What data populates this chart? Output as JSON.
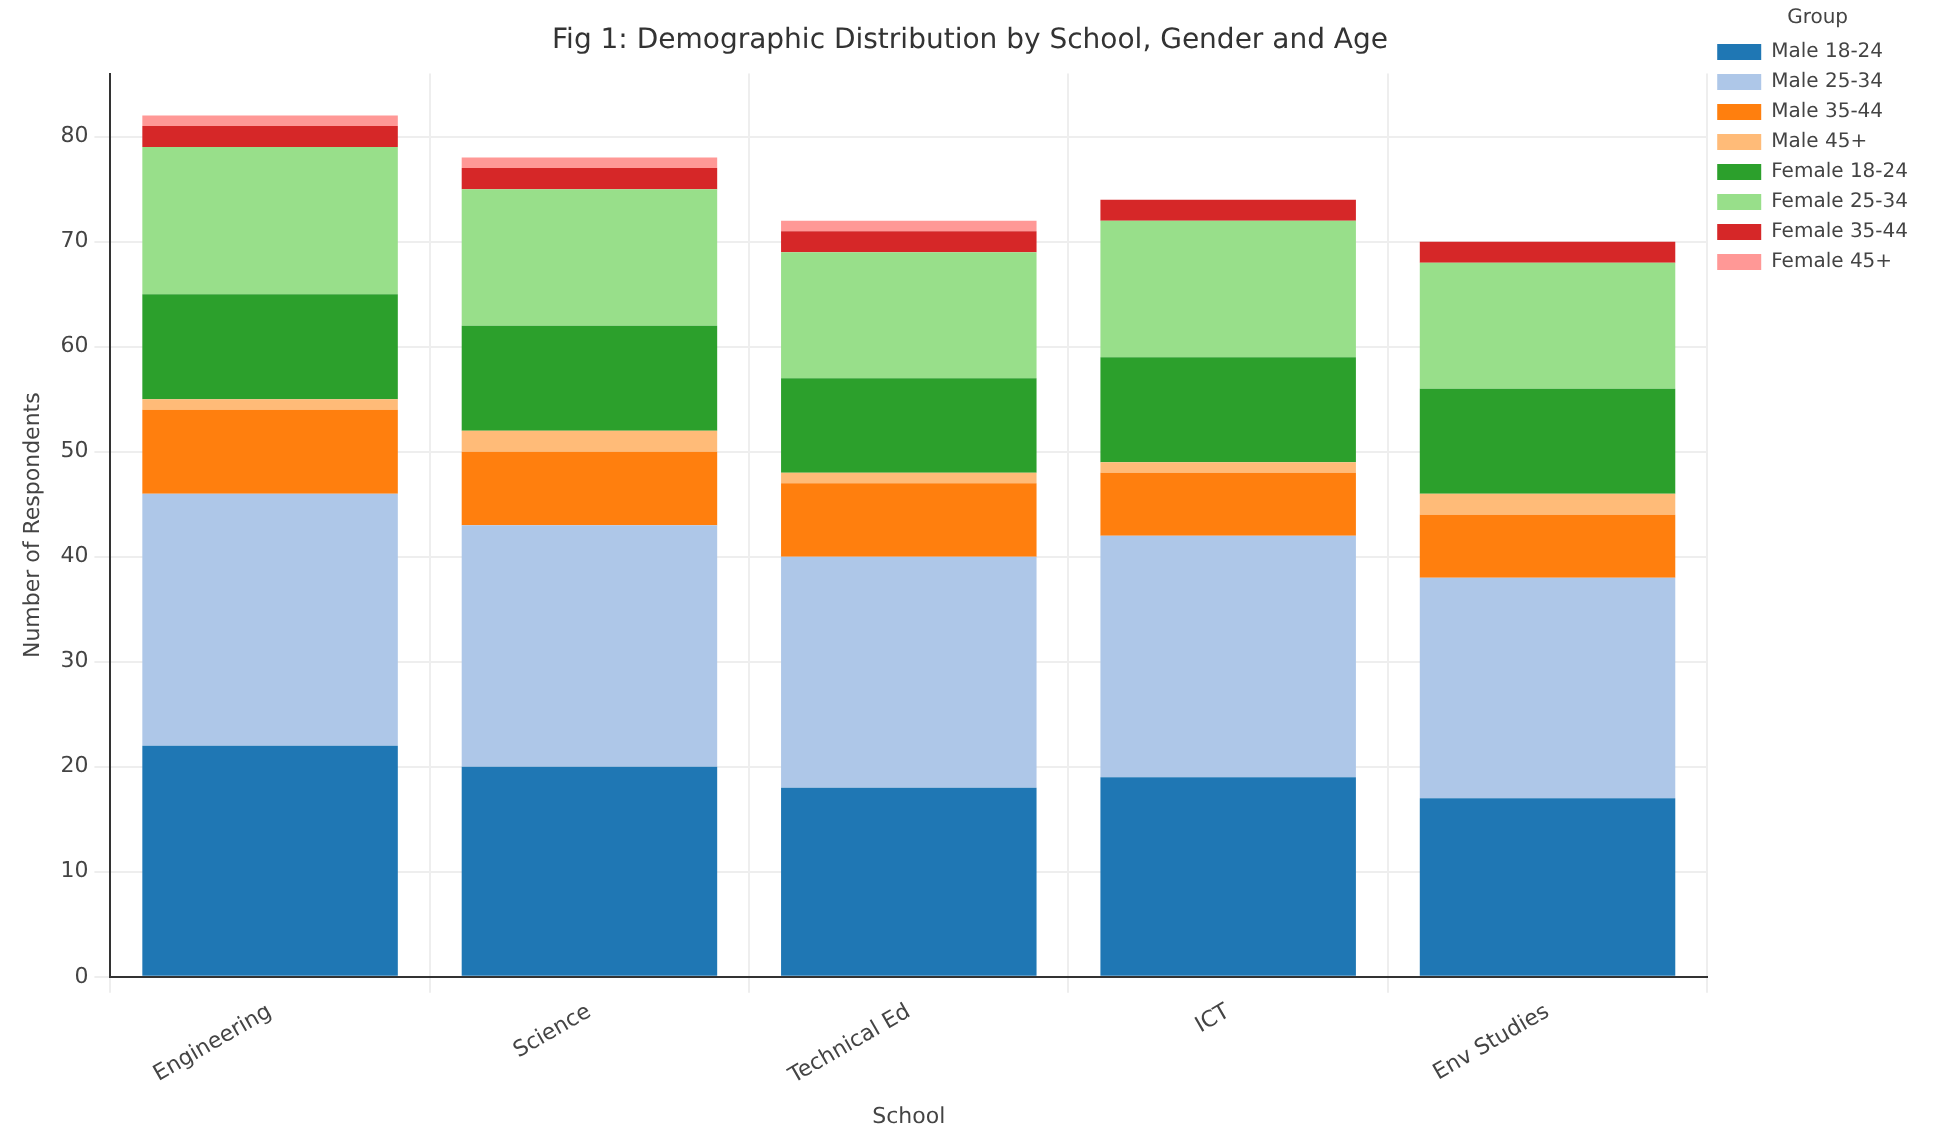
{
  "chart_data": {
    "type": "bar",
    "title": "Fig 1: Demographic Distribution by School, Gender and Age",
    "xlabel": "School",
    "ylabel": "Number of Respondents",
    "legend_title": "Group",
    "categories": [
      "Engineering",
      "Science",
      "Technical Ed",
      "ICT",
      "Env Studies"
    ],
    "stacked": true,
    "ylim": [
      0,
      86
    ],
    "yticks": [
      0,
      10,
      20,
      30,
      40,
      50,
      60,
      70,
      80
    ],
    "grid": true,
    "legend": "right",
    "series": [
      {
        "name": "Male 18-24",
        "color": "#1f77b4",
        "values": [
          22,
          20,
          18,
          19,
          17
        ]
      },
      {
        "name": "Male 25-34",
        "color": "#aec7e8",
        "values": [
          24,
          23,
          22,
          23,
          21
        ]
      },
      {
        "name": "Male 35-44",
        "color": "#ff7f0e",
        "values": [
          8,
          7,
          7,
          6,
          6
        ]
      },
      {
        "name": "Male 45+",
        "color": "#ffbb78",
        "values": [
          1,
          2,
          1,
          1,
          2
        ]
      },
      {
        "name": "Female 18-24",
        "color": "#2ca02c",
        "values": [
          10,
          10,
          9,
          10,
          10
        ]
      },
      {
        "name": "Female 25-34",
        "color": "#98df8a",
        "values": [
          14,
          13,
          12,
          13,
          12
        ]
      },
      {
        "name": "Female 35-44",
        "color": "#d62728",
        "values": [
          2,
          2,
          2,
          2,
          2
        ]
      },
      {
        "name": "Female 45+",
        "color": "#ff9896",
        "values": [
          1,
          1,
          1,
          0,
          0
        ]
      }
    ]
  }
}
